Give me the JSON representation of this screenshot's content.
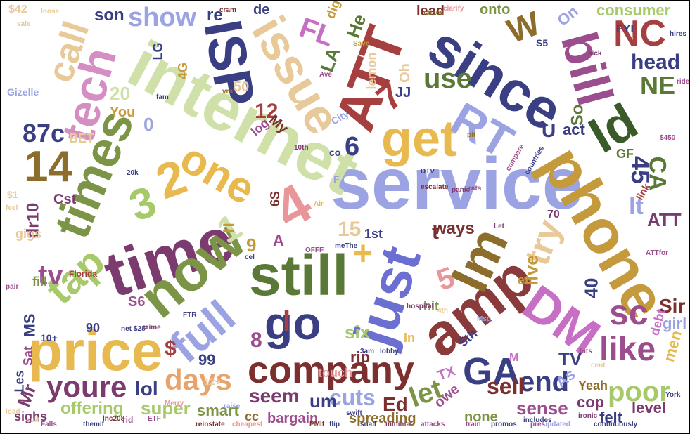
{
  "words": [
    {
      "text": "service",
      "color": "#9ca3e3"
    },
    {
      "text": "phone",
      "color": "#c49a3c"
    },
    {
      "text": "internet",
      "color": "#cfe0a8"
    },
    {
      "text": "time",
      "color": "#7b3b6e"
    },
    {
      "text": "now",
      "color": "#7c9446"
    },
    {
      "text": "still",
      "color": "#5a7836"
    },
    {
      "text": "just",
      "color": "#6b6fd1"
    },
    {
      "text": "amp",
      "color": "#8a3a3a"
    },
    {
      "text": "since",
      "color": "#3a3e82"
    },
    {
      "text": "price",
      "color": "#e8b94f"
    },
    {
      "text": "times",
      "color": "#7c9446"
    },
    {
      "text": "company",
      "color": "#7b2f2f"
    },
    {
      "text": "tech",
      "color": "#d58ec4"
    },
    {
      "text": "get",
      "color": "#e8b94f"
    },
    {
      "text": "one",
      "color": "#e8b94f"
    },
    {
      "text": "issue",
      "color": "#e8c99a"
    },
    {
      "text": "ISP",
      "color": "#3a3e82"
    },
    {
      "text": "ATT",
      "color": "#a64040"
    },
    {
      "text": "bill",
      "color": "#9c4d8e"
    },
    {
      "text": "RT",
      "color": "#9ca3e3"
    },
    {
      "text": "Im",
      "color": "#8c6d2c"
    },
    {
      "text": "DM",
      "color": "#c76fc4"
    },
    {
      "text": "go",
      "color": "#3a3e82"
    },
    {
      "text": "full",
      "color": "#9ca3e3"
    },
    {
      "text": "tap",
      "color": "#a6c96a"
    },
    {
      "text": "like",
      "color": "#9c4d8e"
    },
    {
      "text": "GA",
      "color": "#3a3e82"
    },
    {
      "text": "youre",
      "color": "#7b3b6e"
    },
    {
      "text": "days",
      "color": "#e8a36b"
    },
    {
      "text": "14",
      "color": "#8c6d2c"
    },
    {
      "text": "call",
      "color": "#e8c99a"
    },
    {
      "text": "Id",
      "color": "#3a5a2a"
    },
    {
      "text": "try",
      "color": "#e8c99a"
    },
    {
      "text": "4",
      "color": "#e8969a"
    },
    {
      "text": "2",
      "color": "#e8b94f"
    },
    {
      "text": "3",
      "color": "#a6c96a"
    },
    {
      "text": "NC",
      "color": "#a64040"
    },
    {
      "text": "W",
      "color": "#8c6d2c"
    },
    {
      "text": "end",
      "color": "#3a3e82"
    },
    {
      "text": "poor",
      "color": "#a6c96a"
    },
    {
      "text": "sc",
      "color": "#9c4d8e"
    },
    {
      "text": "show",
      "color": "#9ca3e3"
    },
    {
      "text": "head",
      "color": "#3a3e82"
    },
    {
      "text": "NE",
      "color": "#5a7836"
    },
    {
      "text": "use",
      "color": "#5a7836"
    },
    {
      "text": "sell",
      "color": "#7b2f2f"
    },
    {
      "text": "let",
      "color": "#7c9446"
    },
    {
      "text": "seem",
      "color": "#7b3b6e"
    },
    {
      "text": "cuts",
      "color": "#9ca3e3"
    },
    {
      "text": "super",
      "color": "#a6c96a"
    },
    {
      "text": "smart",
      "color": "#7c9446"
    },
    {
      "text": "offering",
      "color": "#a6c96a"
    },
    {
      "text": "lol",
      "color": "#3a3e82"
    },
    {
      "text": "sense",
      "color": "#9c4d8e"
    },
    {
      "text": "level",
      "color": "#7b3b6e"
    },
    {
      "text": "87c",
      "color": "#3a3e82"
    },
    {
      "text": "tv",
      "color": "#9c4d8e"
    },
    {
      "text": "live",
      "color": "#c49a3c"
    },
    {
      "text": "6",
      "color": "#3a3e82"
    },
    {
      "text": "7",
      "color": "#a64040"
    },
    {
      "text": "1",
      "color": "#cfe0a8"
    },
    {
      "text": "5",
      "color": "#e8969a"
    },
    {
      "text": "45",
      "color": "#3a3e82"
    },
    {
      "text": "CA",
      "color": "#5a7836"
    },
    {
      "text": "lt",
      "color": "#9ca3e3"
    },
    {
      "text": "15",
      "color": "#e8c99a"
    },
    {
      "text": "12",
      "color": "#a64040"
    },
    {
      "text": "20",
      "color": "#cfe0a8"
    },
    {
      "text": "consumer",
      "color": "#a6c96a"
    },
    {
      "text": "son",
      "color": "#3a3e82"
    },
    {
      "text": "Sir",
      "color": "#7b2f2f"
    },
    {
      "text": "girl",
      "color": "#9ca3e3"
    },
    {
      "text": "six",
      "color": "#a6c96a"
    },
    {
      "text": "rip",
      "color": "#7b2f2f"
    },
    {
      "text": "um",
      "color": "#3a3e82"
    },
    {
      "text": "Ed",
      "color": "#7b2f2f"
    },
    {
      "text": "none",
      "color": "#7c9446"
    },
    {
      "text": "felt",
      "color": "#3a3e82"
    },
    {
      "text": "bargain",
      "color": "#9c4d8e"
    },
    {
      "text": "spreading",
      "color": "#8c6d2c"
    },
    {
      "text": "sighs",
      "color": "#7b3b6e"
    },
    {
      "text": "ways",
      "color": "#7b2f2f"
    },
    {
      "text": "FL",
      "color": "#c76fc4"
    },
    {
      "text": "LA",
      "color": "#5a7836"
    },
    {
      "text": "He",
      "color": "#5a7836"
    },
    {
      "text": "Oh",
      "color": "#e8c99a"
    },
    {
      "text": "JJ",
      "color": "#3a3e82"
    },
    {
      "text": "lemon",
      "color": "#e8c99a"
    },
    {
      "text": "log",
      "color": "#9c4d8e"
    },
    {
      "text": "My",
      "color": "#7b2f2f"
    },
    {
      "text": "City",
      "color": "#9ca3e3"
    },
    {
      "text": "act",
      "color": "#3a3e82"
    },
    {
      "text": "So",
      "color": "#5a7836"
    },
    {
      "text": "onto",
      "color": "#7c9446"
    },
    {
      "text": "lead",
      "color": "#7b2f2f"
    },
    {
      "text": "hit",
      "color": "#7c9446"
    },
    {
      "text": "touch",
      "color": "#e8969a"
    },
    {
      "text": "In",
      "color": "#e8b94f"
    },
    {
      "text": "TX",
      "color": "#c76fc4"
    },
    {
      "text": "5th",
      "color": "#3a3e82"
    },
    {
      "text": "owe",
      "color": "#9c4d8e"
    },
    {
      "text": "TV",
      "color": "#3a3e82"
    },
    {
      "text": "As",
      "color": "#9ca3e3"
    },
    {
      "text": "Yeah",
      "color": "#8c6d2c"
    },
    {
      "text": "cop",
      "color": "#7b3b6e"
    },
    {
      "text": "debt",
      "color": "#c76fc4"
    },
    {
      "text": "men",
      "color": "#e8b94f"
    },
    {
      "text": "40",
      "color": "#3a3e82"
    },
    {
      "text": "70",
      "color": "#7b3b6e"
    },
    {
      "text": "link",
      "color": "#a64040"
    },
    {
      "text": "GF",
      "color": "#5a7836"
    },
    {
      "text": "FYI",
      "color": "#3a3e82"
    },
    {
      "text": "S5",
      "color": "#3a3e82"
    },
    {
      "text": "On",
      "color": "#9ca3e3"
    },
    {
      "text": "LG",
      "color": "#3a3e82"
    },
    {
      "text": "4G",
      "color": "#c49a3c"
    },
    {
      "text": "re",
      "color": "#3a3e82"
    },
    {
      "text": "de",
      "color": "#3a3e82"
    },
    {
      "text": "dig",
      "color": "#c49a3c"
    },
    {
      "text": "You",
      "color": "#c49a3c"
    },
    {
      "text": "BET",
      "color": "#e8c99a"
    },
    {
      "text": "dr10",
      "color": "#7b3b6e"
    },
    {
      "text": "6S",
      "color": "#7b2f2f"
    },
    {
      "text": "MS",
      "color": "#3a3e82"
    },
    {
      "text": "90",
      "color": "#3a3e82"
    },
    {
      "text": "99",
      "color": "#3a3e82"
    },
    {
      "text": "12+",
      "color": "#e8c99a"
    },
    {
      "text": "gigs",
      "color": "#e8c99a"
    },
    {
      "text": "fill",
      "color": "#7c9446"
    },
    {
      "text": "Sat",
      "color": "#9c4d8e"
    },
    {
      "text": "Mr",
      "color": "#7b3b6e"
    },
    {
      "text": "Les",
      "color": "#3a3e82"
    },
    {
      "text": "$42",
      "color": "#e8c99a"
    },
    {
      "text": "Gizelle",
      "color": "#9ca3e3"
    },
    {
      "text": "Florida",
      "color": "#a64040"
    },
    {
      "text": "raises",
      "color": "#8c6d2c"
    },
    {
      "text": "hospital",
      "color": "#7b3b6e"
    },
    {
      "text": "escalate",
      "color": "#7b2f2f"
    },
    {
      "text": "swift",
      "color": "#3a3e82"
    },
    {
      "text": "reinstate",
      "color": "#7b2f2f"
    },
    {
      "text": "cheapest",
      "color": "#e8969a"
    },
    {
      "text": "continuously",
      "color": "#3a3e82"
    },
    {
      "text": "ironic",
      "color": "#7b3b6e"
    },
    {
      "text": "updated",
      "color": "#9ca3e3"
    },
    {
      "text": "minimal",
      "color": "#7b3b6e"
    },
    {
      "text": "attacks",
      "color": "#9c4d8e"
    },
    {
      "text": "promos",
      "color": "#3a3e82"
    },
    {
      "text": "train",
      "color": "#9c4d8e"
    },
    {
      "text": "flip",
      "color": "#3a3e82"
    },
    {
      "text": "snail",
      "color": "#3a3e82"
    },
    {
      "text": "PMIf",
      "color": "#7b2f2f"
    },
    {
      "text": "lnc208",
      "color": "#7b2f2f"
    },
    {
      "text": "themif",
      "color": "#3a3e82"
    },
    {
      "text": "compare",
      "color": "#9c4d8e"
    },
    {
      "text": "countries",
      "color": "#3a3e82"
    },
    {
      "text": "clarify",
      "color": "#e8969a"
    },
    {
      "text": "hires",
      "color": "#3a3e82"
    },
    {
      "text": "sick",
      "color": "#7b3b6e"
    },
    {
      "text": "DTV",
      "color": "#3a3e82"
    },
    {
      "text": "lobby",
      "color": "#3a3e82"
    },
    {
      "text": "3am",
      "color": "#3a3e82"
    },
    {
      "text": "crime",
      "color": "#7b3b6e"
    },
    {
      "text": "Merry",
      "color": "#e8969a"
    },
    {
      "text": "ETF",
      "color": "#9c4d8e"
    },
    {
      "text": "includes",
      "color": "#3a3e82"
    },
    {
      "text": "raise",
      "color": "#9ca3e3"
    },
    {
      "text": "pres",
      "color": "#9c4d8e"
    },
    {
      "text": "Msg",
      "color": "#9ca3e3"
    },
    {
      "text": "Let",
      "color": "#7b3b6e"
    },
    {
      "text": "bits",
      "color": "#9c4d8e"
    },
    {
      "text": "cent",
      "color": "#e8c99a"
    },
    {
      "text": "10+",
      "color": "#3a3e82"
    },
    {
      "text": "$28",
      "color": "#3a3e82"
    },
    {
      "text": "net",
      "color": "#3a3e82"
    },
    {
      "text": "sale",
      "color": "#e8c99a"
    },
    {
      "text": "loose",
      "color": "#e8c99a"
    },
    {
      "text": "rats",
      "color": "#9c4d8e"
    },
    {
      "text": "Save",
      "color": "#c49a3c"
    },
    {
      "text": "ride",
      "color": "#9c4d8e"
    },
    {
      "text": "1st",
      "color": "#3a3e82"
    },
    {
      "text": "Air",
      "color": "#e8b94f"
    },
    {
      "text": "pit",
      "color": "#8c6d2c"
    },
    {
      "text": "Ave",
      "color": "#9c4d8e"
    },
    {
      "text": "$1",
      "color": "#e8c99a"
    },
    {
      "text": "4th",
      "color": "#e8c99a"
    },
    {
      "text": "OFFF",
      "color": "#9c4d8e"
    },
    {
      "text": "meThe",
      "color": "#3a3e82"
    },
    {
      "text": "cel",
      "color": "#3a3e82"
    },
    {
      "text": "cram",
      "color": "#7b2f2f"
    },
    {
      "text": "10th",
      "color": "#7b3b6e"
    },
    {
      "text": "vrs",
      "color": "#8c6d2c"
    },
    {
      "text": "fam",
      "color": "#3a3e82"
    },
    {
      "text": "pair",
      "color": "#9c4d8e"
    },
    {
      "text": "feel",
      "color": "#e8c99a"
    },
    {
      "text": "load",
      "color": "#e8c99a"
    },
    {
      "text": "York",
      "color": "#3a3e82"
    },
    {
      "text": "ATTfor",
      "color": "#9c4d8e"
    },
    {
      "text": "FTR",
      "color": "#3a3e82"
    },
    {
      "text": "20k",
      "color": "#3a3e82"
    },
    {
      "text": "$450",
      "color": "#9c4d8e"
    },
    {
      "text": "Cst",
      "color": "#7b3b6e"
    },
    {
      "text": "ATT",
      "color": "#7b3b6e"
    },
    {
      "text": "$",
      "color": "#a64040"
    },
    {
      "text": "+",
      "color": "#e8b94f"
    },
    {
      "text": "=",
      "color": "#c49a3c"
    },
    {
      "text": "8",
      "color": "#9c4d8e"
    },
    {
      "text": "9",
      "color": "#c49a3c"
    },
    {
      "text": "0",
      "color": "#9ca3e3"
    },
    {
      "text": "U",
      "color": "#3a3e82"
    },
    {
      "text": "A",
      "color": "#9c4d8e"
    },
    {
      "text": "t",
      "color": "#7b2f2f"
    },
    {
      "text": "l",
      "color": "#a64040"
    },
    {
      "text": "S6",
      "color": "#9c4d8e"
    },
    {
      "text": "M",
      "color": "#c76fc4"
    },
    {
      "text": "F",
      "color": "#9ca3e3"
    },
    {
      "text": "co",
      "color": "#3a3e82"
    },
    {
      "text": "etc",
      "color": "#c49a3c"
    },
    {
      "text": "cc",
      "color": "#8c6d2c"
    },
    {
      "text": "50",
      "color": "#e8c99a"
    },
    {
      "text": "rid",
      "color": "#9c4d8e"
    },
    {
      "text": "suit",
      "color": "#e8c99a"
    },
    {
      "text": "Falls",
      "color": "#9c4d8e"
    },
    {
      "text": "panic",
      "color": "#7b3b6e"
    }
  ]
}
